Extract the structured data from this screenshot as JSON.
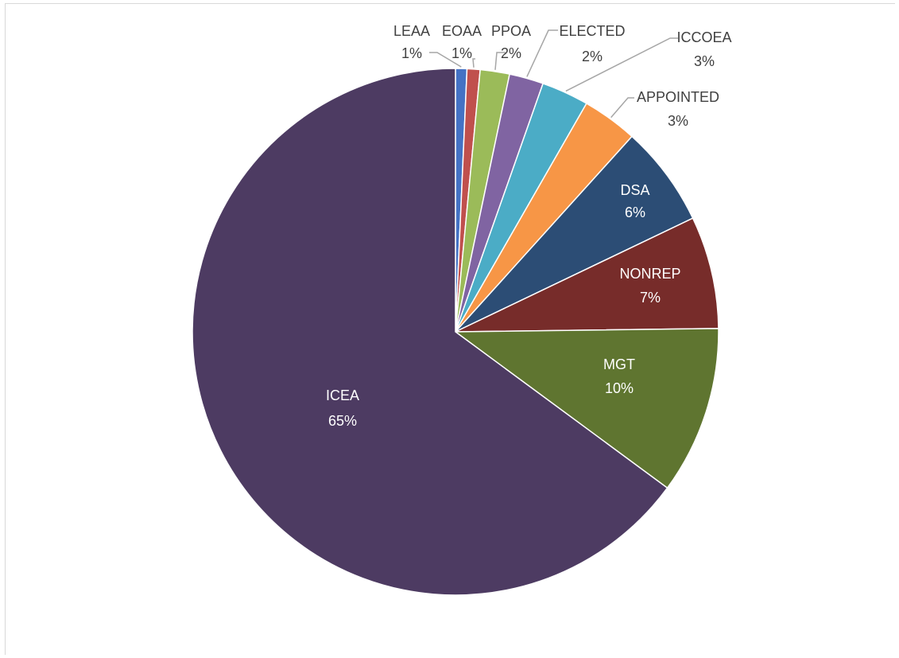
{
  "chart_data": {
    "type": "pie",
    "title": "",
    "start_angle_deg": 0,
    "direction": "clockwise",
    "legend": "none",
    "label_format": "category-and-percent",
    "slices": [
      {
        "label": "LEAA",
        "value": 0.7,
        "percent_label": "1%",
        "color": "#4472c4",
        "label_position": "outside"
      },
      {
        "label": "EOAA",
        "value": 0.8,
        "percent_label": "1%",
        "color": "#c0504d",
        "label_position": "outside"
      },
      {
        "label": "PPOA",
        "value": 1.8,
        "percent_label": "2%",
        "color": "#9bbb59",
        "label_position": "outside"
      },
      {
        "label": "ELECTED",
        "value": 2.1,
        "percent_label": "2%",
        "color": "#8064a2",
        "label_position": "outside"
      },
      {
        "label": "ICCOEA",
        "value": 2.9,
        "percent_label": "3%",
        "color": "#4bacc6",
        "label_position": "outside"
      },
      {
        "label": "APPOINTED",
        "value": 3.4,
        "percent_label": "3%",
        "color": "#f79646",
        "label_position": "outside"
      },
      {
        "label": "DSA",
        "value": 6.2,
        "percent_label": "6%",
        "color": "#2c4d75",
        "label_position": "inside"
      },
      {
        "label": "NONREP",
        "value": 6.9,
        "percent_label": "7%",
        "color": "#772c2a",
        "label_position": "inside"
      },
      {
        "label": "MGT",
        "value": 10.3,
        "percent_label": "10%",
        "color": "#5f7530",
        "label_position": "inside"
      },
      {
        "label": "ICEA",
        "value": 64.9,
        "percent_label": "65%",
        "color": "#4d3b62",
        "label_position": "inside"
      }
    ]
  }
}
